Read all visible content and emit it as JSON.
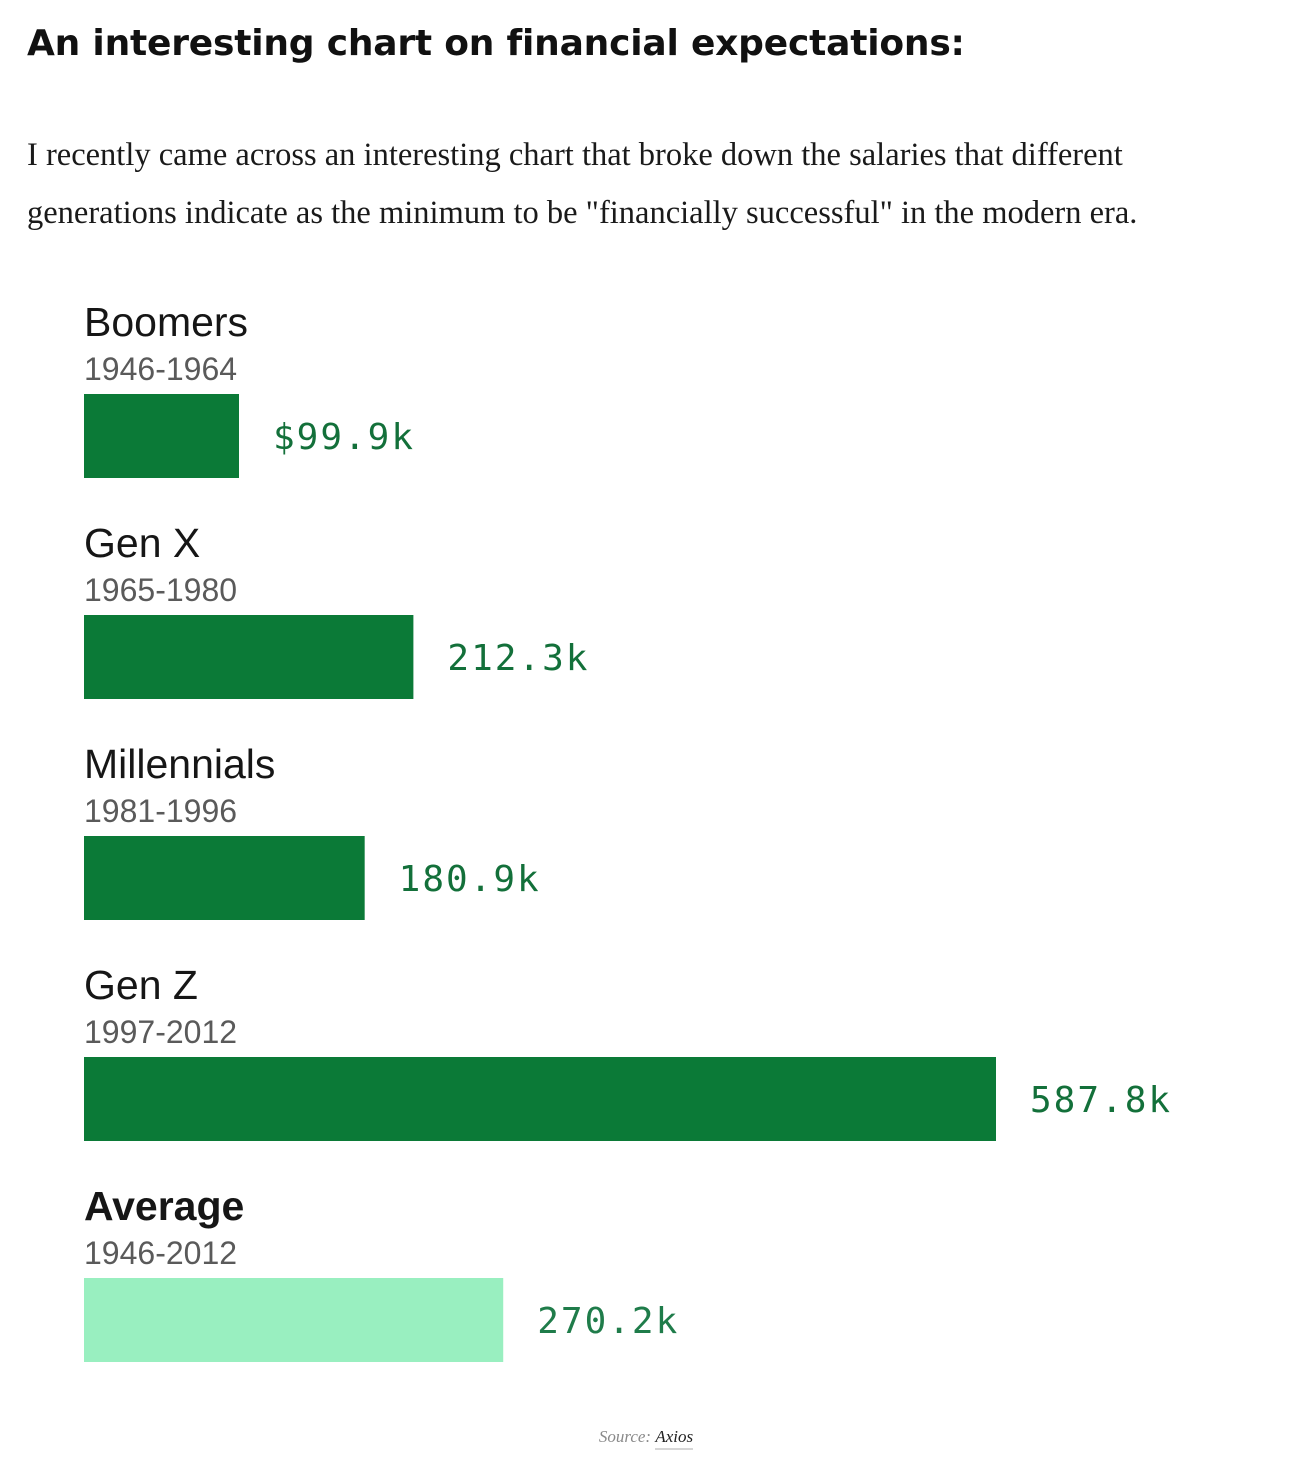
{
  "article": {
    "heading": "An interesting chart on financial expectations:",
    "intro": "I recently came across an interesting chart that broke down the salaries that different generations indicate as the minimum to be \"financially successful\" in the modern era."
  },
  "chart_data": {
    "type": "bar",
    "orientation": "horizontal",
    "title": "",
    "xlabel": "",
    "ylabel": "",
    "categories": [
      "Boomers",
      "Gen X",
      "Millennials",
      "Gen Z",
      "Average"
    ],
    "category_years": [
      "1946-1964",
      "1965-1980",
      "1981-1996",
      "1997-2012",
      "1946-2012"
    ],
    "values": [
      99.9,
      212.3,
      180.9,
      587.8,
      270.2
    ],
    "value_unit": "thousand USD",
    "value_labels": [
      "$99.9k",
      "212.3k",
      "180.9k",
      "587.8k",
      "270.2k"
    ],
    "bar_colors": [
      "#0b7a37",
      "#0b7a37",
      "#0b7a37",
      "#0b7a37",
      "#99efc0"
    ],
    "label_colors": [
      "#13703a",
      "#13703a",
      "#13703a",
      "#13703a",
      "#1f7c4a"
    ],
    "xlim": [
      0,
      587.8
    ],
    "grid": false,
    "legend": "none"
  },
  "source": {
    "prefix": "Source:",
    "name": "Axios"
  }
}
